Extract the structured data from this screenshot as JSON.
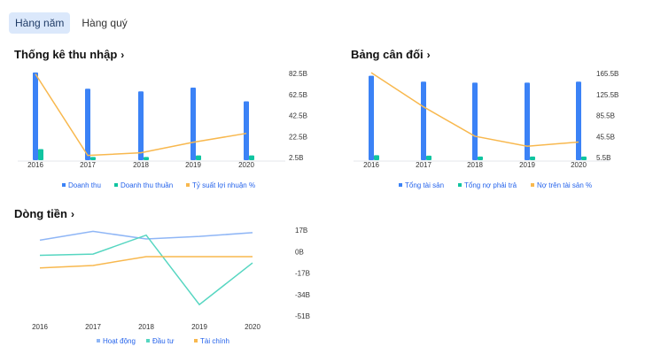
{
  "tabs": [
    {
      "label": "Hàng năm",
      "active": true
    },
    {
      "label": "Hàng quý",
      "active": false
    }
  ],
  "colors": {
    "blue": "#3b82f6",
    "teal": "#10c4a0",
    "orange": "#f8b84e",
    "lineBlue": "#8fb6f6",
    "lineTeal": "#56d6c1",
    "axis": "#e5e7eb"
  },
  "chart_data": [
    {
      "id": "income",
      "title": "Thống kê thu nhập",
      "chevron": "›",
      "type": "bar",
      "categories": [
        "2016",
        "2017",
        "2018",
        "2019",
        "2020"
      ],
      "y_ticks": [
        "82.5B",
        "62.5B",
        "42.5B",
        "22.5B",
        "2.5B"
      ],
      "ylim": [
        2.5,
        82.5
      ],
      "series": [
        {
          "name": "Doanh thu",
          "kind": "bar",
          "color": "#3b82f6",
          "values": [
            83.5,
            68,
            65.5,
            69,
            56
          ]
        },
        {
          "name": "Doanh thu thuần",
          "kind": "bar",
          "color": "#10c4a0",
          "values": [
            10.5,
            3.0,
            3.0,
            4.5,
            4.5
          ]
        },
        {
          "name": "Tỷ suất lợi nhuận %",
          "kind": "line",
          "color": "#f8b84e",
          "values": [
            82,
            4.5,
            7,
            17,
            25.5
          ]
        }
      ],
      "legend": "bottom"
    },
    {
      "id": "balance",
      "title": "Bảng cân đối",
      "chevron": "›",
      "type": "bar",
      "categories": [
        "2016",
        "2017",
        "2018",
        "2019",
        "2020"
      ],
      "y_ticks": [
        "165.5B",
        "125.5B",
        "85.5B",
        "45.5B",
        "5.5B"
      ],
      "ylim": [
        5.5,
        165.5
      ],
      "series": [
        {
          "name": "Tổng tài sản",
          "kind": "bar",
          "color": "#3b82f6",
          "values": [
            161,
            150,
            148,
            148,
            150
          ]
        },
        {
          "name": "Tổng nợ phải trả",
          "kind": "bar",
          "color": "#10c4a0",
          "values": [
            10,
            9,
            7.5,
            7.5,
            7.5
          ]
        },
        {
          "name": "Nợ trên tài sản %",
          "kind": "line",
          "color": "#f8b84e",
          "values": [
            167,
            102,
            46,
            27,
            35
          ]
        }
      ],
      "legend": "bottom"
    },
    {
      "id": "cashflow",
      "title": "Dòng tiền",
      "chevron": "›",
      "type": "line",
      "categories": [
        "2016",
        "2017",
        "2018",
        "2019",
        "2020"
      ],
      "y_ticks": [
        "17B",
        "0B",
        "-17B",
        "-34B",
        "-51B"
      ],
      "ylim": [
        -51,
        17
      ],
      "series": [
        {
          "name": "Hoạt động",
          "kind": "line",
          "color": "#8fb6f6",
          "values": [
            9,
            16,
            10,
            12,
            15
          ]
        },
        {
          "name": "Đầu tư",
          "kind": "line",
          "color": "#56d6c1",
          "values": [
            -3,
            -2,
            13,
            -42,
            -9
          ]
        },
        {
          "name": "Tài chính",
          "kind": "line",
          "color": "#f8b84e",
          "values": [
            -13,
            -11,
            -4,
            -4,
            -4
          ]
        }
      ],
      "legend": "bottom"
    }
  ]
}
